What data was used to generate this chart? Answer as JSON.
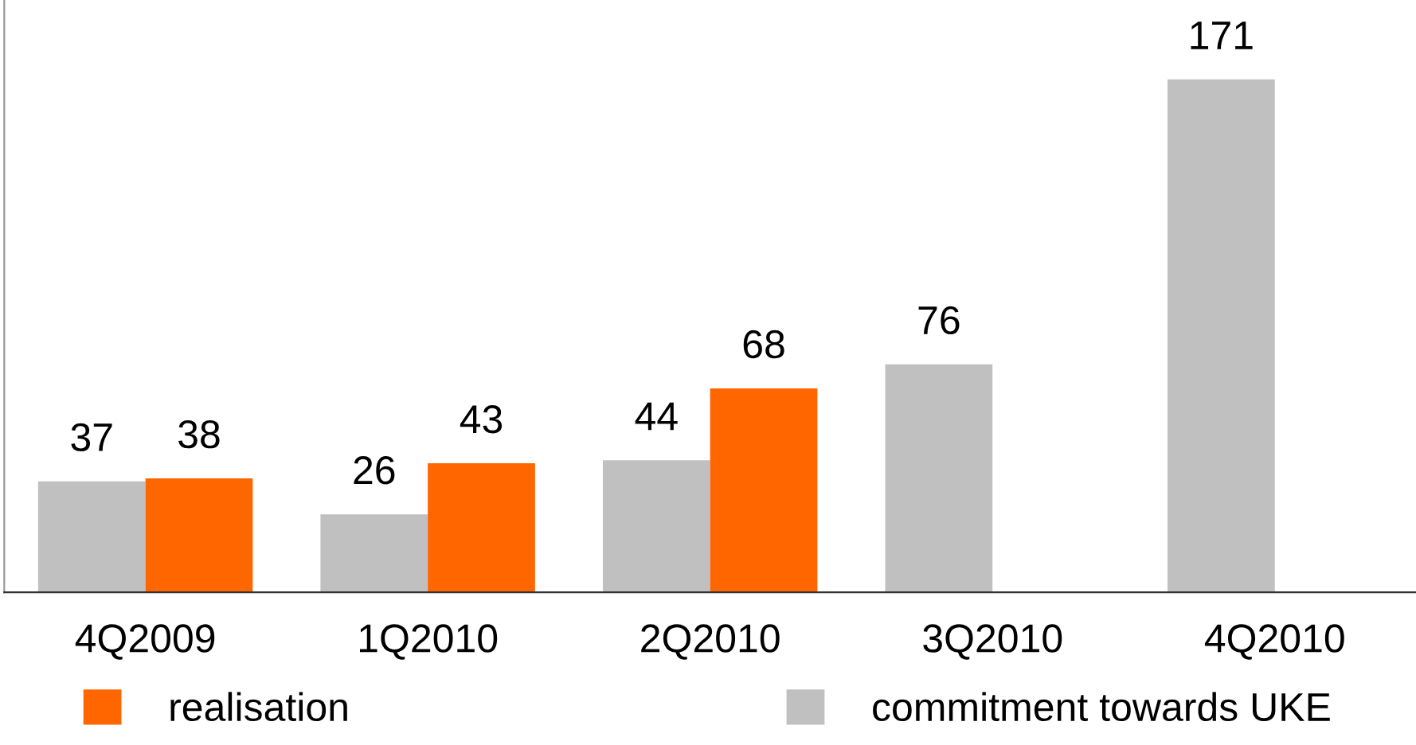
{
  "chart_data": {
    "type": "bar",
    "categories": [
      "4Q2009",
      "1Q2010",
      "2Q2010",
      "3Q2010",
      "4Q2010"
    ],
    "series": [
      {
        "name": "commitment towards UKE",
        "color": "#c0c0c0",
        "values": [
          37,
          26,
          44,
          76,
          171
        ]
      },
      {
        "name": "realisation",
        "color": "#ff6600",
        "values": [
          38,
          43,
          68,
          null,
          null
        ]
      }
    ],
    "data_labels": true,
    "legend": "bottom",
    "grid": false
  }
}
